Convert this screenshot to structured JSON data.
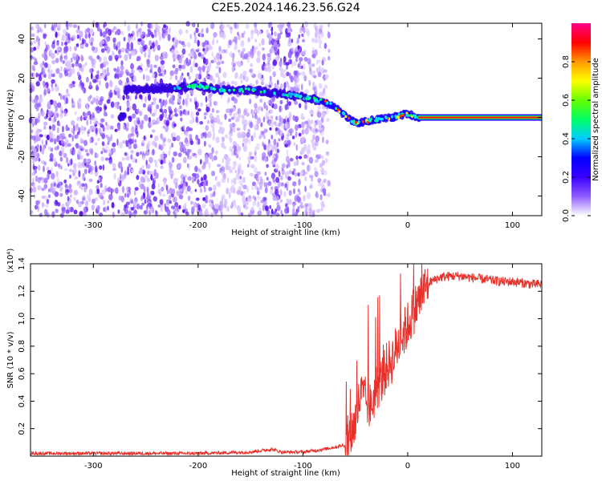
{
  "figure": {
    "title": "C2E5.2024.146.23.56.G24"
  },
  "chart_data": [
    {
      "type": "heatmap",
      "xlabel": "Height of straight line (km)",
      "ylabel": "Frequency (Hz)",
      "xlim": [
        -360,
        128
      ],
      "ylim": [
        -50,
        48
      ],
      "xticks": [
        -300,
        -200,
        -100,
        0,
        100
      ],
      "yticks": [
        -40,
        -20,
        0,
        20,
        40
      ],
      "colorbar": {
        "label": "Normalized spectral amplitude",
        "range": [
          0,
          1
        ],
        "ticks": [
          0.0,
          0.2,
          0.4,
          0.6,
          0.8
        ],
        "colormap": [
          "#ffffff",
          "#8f5cff",
          "#3a00ff",
          "#0000ff",
          "#00ccff",
          "#00ff66",
          "#66ff00",
          "#ffff00",
          "#ff9900",
          "#ff0000",
          "#ff0088"
        ]
      },
      "noise_region": {
        "x_range": [
          -360,
          -75
        ],
        "freq_range": [
          -50,
          48
        ]
      },
      "signal_trace": [
        {
          "x": -270,
          "freq": 14
        },
        {
          "x": -230,
          "freq": 15
        },
        {
          "x": -200,
          "freq": 16
        },
        {
          "x": -180,
          "freq": 14
        },
        {
          "x": -150,
          "freq": 14
        },
        {
          "x": -120,
          "freq": 12
        },
        {
          "x": -95,
          "freq": 10
        },
        {
          "x": -80,
          "freq": 8
        },
        {
          "x": -70,
          "freq": 6
        },
        {
          "x": -60,
          "freq": 1
        },
        {
          "x": -50,
          "freq": -3
        },
        {
          "x": -40,
          "freq": -2
        },
        {
          "x": -30,
          "freq": -1
        },
        {
          "x": -15,
          "freq": 0
        },
        {
          "x": 0,
          "freq": 2
        },
        {
          "x": 10,
          "freq": 0
        },
        {
          "x": 128,
          "freq": 0
        }
      ],
      "carrier_line": {
        "x_range": [
          10,
          128
        ],
        "freq": 0
      }
    },
    {
      "type": "line",
      "xlabel": "Height of straight line (km)",
      "ylabel": "SNR (10 * v/v)",
      "y_multiplier": "(x10⁴)",
      "xlim": [
        -360,
        128
      ],
      "ylim": [
        0,
        1.4
      ],
      "xticks": [
        -300,
        -200,
        -100,
        0,
        100
      ],
      "yticks": [
        0.2,
        0.4,
        0.6,
        0.8,
        1.0,
        1.2,
        1.4
      ],
      "series": [
        {
          "color": "#e8302a",
          "x": [
            -360,
            -300,
            -200,
            -150,
            -130,
            -120,
            -100,
            -80,
            -60,
            -55,
            -50,
            -45,
            -40,
            -35,
            -30,
            -25,
            -20,
            -15,
            -10,
            -5,
            0,
            5,
            10,
            15,
            20,
            30,
            40,
            50,
            60,
            70,
            80,
            90,
            100,
            110,
            120,
            128
          ],
          "y": [
            0.02,
            0.02,
            0.02,
            0.03,
            0.05,
            0.03,
            0.03,
            0.05,
            0.08,
            0.15,
            0.25,
            0.45,
            0.4,
            0.35,
            0.5,
            0.55,
            0.65,
            0.7,
            0.8,
            0.88,
            0.95,
            1.05,
            1.12,
            1.2,
            1.26,
            1.3,
            1.31,
            1.31,
            1.3,
            1.29,
            1.28,
            1.27,
            1.27,
            1.26,
            1.25,
            1.25
          ]
        }
      ]
    }
  ]
}
